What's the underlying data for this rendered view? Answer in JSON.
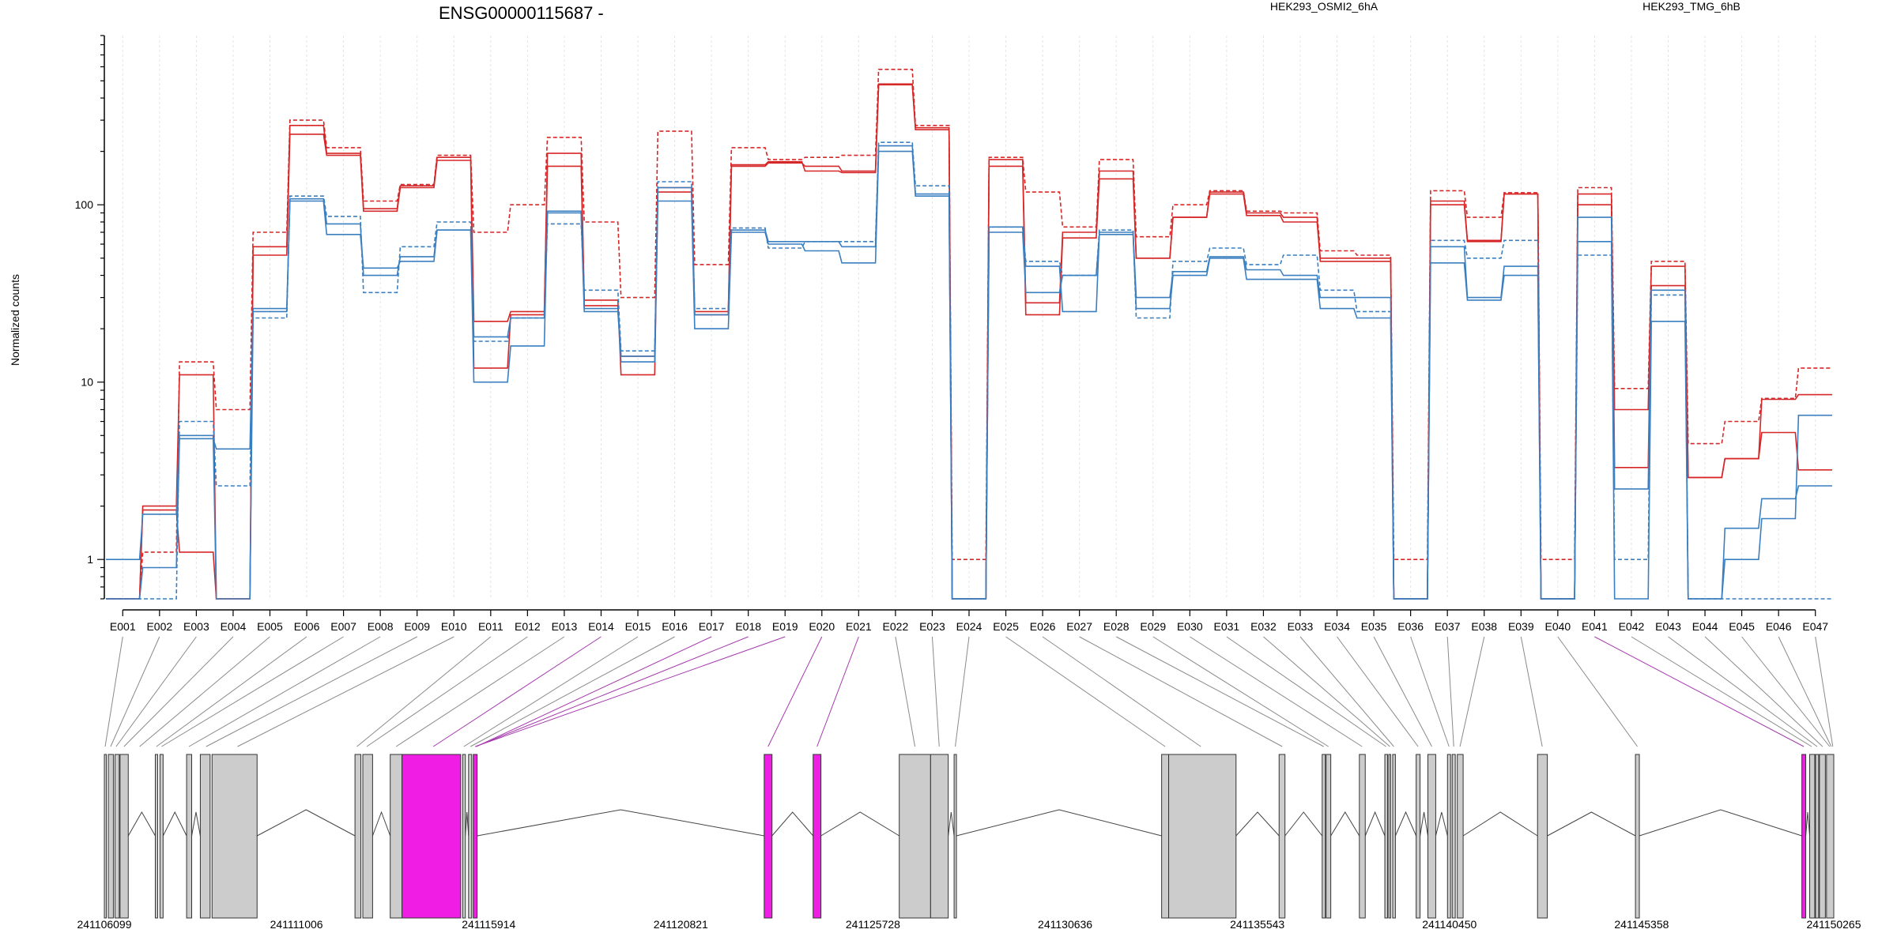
{
  "chart_data": {
    "type": "line",
    "title": "ENSG00000115687 -",
    "ylabel": "Normalized counts",
    "xlabel": "",
    "yscale": "log",
    "ylim": [
      0.6,
      900
    ],
    "yticks": [
      "1",
      "10",
      "100"
    ],
    "ytick_values": [
      1,
      10,
      100
    ],
    "grid": "vertical dashed",
    "legend": [
      {
        "name": "HEK293_OSMI2_6hA",
        "color": "#d62728"
      },
      {
        "name": "HEK293_TMG_6hB",
        "color": "#3a7fc0"
      }
    ],
    "categories": [
      "E001",
      "E002",
      "E003",
      "E004",
      "E005",
      "E006",
      "E007",
      "E008",
      "E009",
      "E010",
      "E011",
      "E012",
      "E013",
      "E014",
      "E015",
      "E016",
      "E017",
      "E018",
      "E019",
      "E020",
      "E021",
      "E022",
      "E023",
      "E024",
      "E025",
      "E026",
      "E027",
      "E028",
      "E029",
      "E030",
      "E031",
      "E032",
      "E033",
      "E034",
      "E035",
      "E036",
      "E037",
      "E038",
      "E039",
      "E040",
      "E041",
      "E042",
      "E043",
      "E044",
      "E045",
      "E046",
      "E047"
    ],
    "series": [
      {
        "group": "HEK293_OSMI2_6hA",
        "color": "#d62728",
        "style": "solid",
        "values": [
          0.6,
          1.9,
          1.1,
          0.6,
          58,
          280,
          195,
          95,
          128,
          185,
          22,
          25,
          165,
          27,
          14,
          125,
          25,
          165,
          172,
          165,
          155,
          480,
          272,
          0.6,
          180,
          28,
          70,
          155,
          50,
          85,
          118,
          90,
          85,
          48,
          48,
          0.6,
          100,
          62,
          115,
          0.6,
          115,
          3.3,
          35,
          2.9,
          3.7,
          5.2,
          3.2
        ]
      },
      {
        "group": "HEK293_OSMI2_6hA",
        "color": "#d62728",
        "style": "solid",
        "values": [
          0.6,
          2.0,
          11,
          0.6,
          52,
          250,
          190,
          92,
          125,
          178,
          12,
          24,
          195,
          29,
          11,
          118,
          24,
          168,
          175,
          155,
          152,
          475,
          265,
          0.6,
          165,
          24,
          65,
          140,
          50,
          85,
          115,
          87,
          80,
          50,
          50,
          0.6,
          105,
          63,
          115,
          0.6,
          100,
          7,
          45,
          2.9,
          3.7,
          8,
          8.5
        ]
      },
      {
        "group": "HEK293_OSMI2_6hA",
        "color": "#d62728",
        "style": "dashed",
        "values": [
          0.6,
          1.1,
          13,
          7,
          70,
          300,
          210,
          105,
          130,
          190,
          70,
          100,
          240,
          80,
          30,
          260,
          46,
          210,
          180,
          185,
          190,
          580,
          280,
          1.0,
          185,
          118,
          75,
          180,
          66,
          100,
          120,
          92,
          90,
          55,
          52,
          1.0,
          120,
          85,
          117,
          1.0,
          125,
          9.2,
          48,
          4.5,
          6,
          8.1,
          12
        ]
      },
      {
        "group": "HEK293_TMG_6hB",
        "color": "#3a7fc0",
        "style": "solid",
        "values": [
          1.0,
          1.8,
          5,
          0.6,
          25,
          108,
          78,
          40,
          51,
          72,
          18,
          23,
          90,
          25,
          14,
          125,
          24,
          72,
          62,
          62,
          58,
          215,
          115,
          0.6,
          75,
          45,
          25,
          70,
          30,
          42,
          51,
          43,
          40,
          30,
          30,
          0.6,
          58,
          30,
          45,
          0.6,
          85,
          2.5,
          33,
          0.6,
          1.5,
          2.2,
          2.6
        ]
      },
      {
        "group": "HEK293_TMG_6hB",
        "color": "#3a7fc0",
        "style": "solid",
        "values": [
          0.6,
          0.9,
          4.8,
          4.2,
          26,
          105,
          68,
          44,
          48,
          72,
          10,
          16,
          92,
          26,
          13,
          105,
          20,
          70,
          60,
          55,
          47,
          200,
          112,
          0.6,
          70,
          32,
          40,
          68,
          26,
          40,
          50,
          38,
          38,
          26,
          23,
          0.6,
          47,
          29,
          40,
          0.6,
          62,
          0.6,
          22,
          0.6,
          1.0,
          1.7,
          6.5
        ]
      },
      {
        "group": "HEK293_TMG_6hB",
        "color": "#3a7fc0",
        "style": "dashed",
        "values": [
          0.6,
          0.6,
          6,
          2.6,
          23,
          112,
          86,
          32,
          58,
          80,
          17,
          23,
          78,
          33,
          15,
          135,
          26,
          74,
          57,
          62,
          62,
          225,
          128,
          0.6,
          75,
          48,
          40,
          72,
          23,
          48,
          57,
          46,
          52,
          33,
          25,
          0.6,
          63,
          50,
          63,
          0.6,
          52,
          1.0,
          31,
          0.6,
          0.6,
          0.6,
          0.6
        ]
      }
    ],
    "genomic_axis": {
      "ticks": [
        "241106099",
        "241111006",
        "241115914",
        "241120821",
        "241125728",
        "241130636",
        "241135543",
        "241140450",
        "241145358",
        "241150265"
      ],
      "tick_values": [
        241106099,
        241111006,
        241115914,
        241120821,
        241125728,
        241130636,
        241135543,
        241140450,
        241145358,
        241150265
      ],
      "exon_color": "#cccccc",
      "highlight_color": "#f01ee4",
      "exons": [
        {
          "start": 241106099,
          "end": 241106150
        },
        {
          "start": 241106200,
          "end": 241106330
        },
        {
          "start": 241106370,
          "end": 241106480
        },
        {
          "start": 241106500,
          "end": 241106710
        },
        {
          "start": 241107400,
          "end": 241107460
        },
        {
          "start": 241107520,
          "end": 241107600
        },
        {
          "start": 241108200,
          "end": 241108330
        },
        {
          "start": 241108550,
          "end": 241108800
        },
        {
          "start": 241108850,
          "end": 241110000
        },
        {
          "start": 241112500,
          "end": 241112650
        },
        {
          "start": 241112700,
          "end": 241112950
        },
        {
          "start": 241113400,
          "end": 241113700
        },
        {
          "start": 241113700,
          "end": 241115200,
          "highlight": true
        },
        {
          "start": 241115250,
          "end": 241115320
        },
        {
          "start": 241115400,
          "end": 241115480
        },
        {
          "start": 241115520,
          "end": 241115620,
          "highlight": true
        },
        {
          "start": 241122950,
          "end": 241123150,
          "highlight": true
        },
        {
          "start": 241124200,
          "end": 241124400,
          "highlight": true
        },
        {
          "start": 241126400,
          "end": 241127200
        },
        {
          "start": 241127200,
          "end": 241127650
        },
        {
          "start": 241127800,
          "end": 241127860
        },
        {
          "start": 241133100,
          "end": 241133280
        },
        {
          "start": 241133280,
          "end": 241135000
        },
        {
          "start": 241136100,
          "end": 241136250
        },
        {
          "start": 241137200,
          "end": 241137280
        },
        {
          "start": 241137300,
          "end": 241137420
        },
        {
          "start": 241138150,
          "end": 241138300
        },
        {
          "start": 241138800,
          "end": 241138870
        },
        {
          "start": 241138900,
          "end": 241138950
        },
        {
          "start": 241139000,
          "end": 241139070
        },
        {
          "start": 241139600,
          "end": 241139700
        },
        {
          "start": 241139900,
          "end": 241140100
        },
        {
          "start": 241140400,
          "end": 241140480
        },
        {
          "start": 241140520,
          "end": 241140600
        },
        {
          "start": 241140650,
          "end": 241140800
        },
        {
          "start": 241142700,
          "end": 241142950
        },
        {
          "start": 241145200,
          "end": 241145300
        },
        {
          "start": 241149450,
          "end": 241149550,
          "highlight": true
        },
        {
          "start": 241149650,
          "end": 241149780
        },
        {
          "start": 241149800,
          "end": 241149880
        },
        {
          "start": 241149900,
          "end": 241150050
        },
        {
          "start": 241150080,
          "end": 241150265
        }
      ],
      "feature_mapping": [
        241106120,
        241106260,
        241106400,
        241106600,
        241107000,
        241107430,
        241107560,
        241108260,
        241108700,
        241109500,
        241112550,
        241112800,
        241113550,
        241114500,
        241115280,
        241115450,
        241115600,
        241115580,
        241115570,
        241123050,
        241124300,
        241126800,
        241127420,
        241127830,
        241133190,
        241134100,
        241136180,
        241137240,
        241137360,
        241138220,
        241138830,
        241138930,
        241139030,
        241139650,
        241140000,
        241140440,
        241140560,
        241140720,
        241142820,
        241145250,
        241149500,
        241149700,
        241149840,
        241149980,
        241150160,
        241150200,
        241150240
      ]
    }
  }
}
